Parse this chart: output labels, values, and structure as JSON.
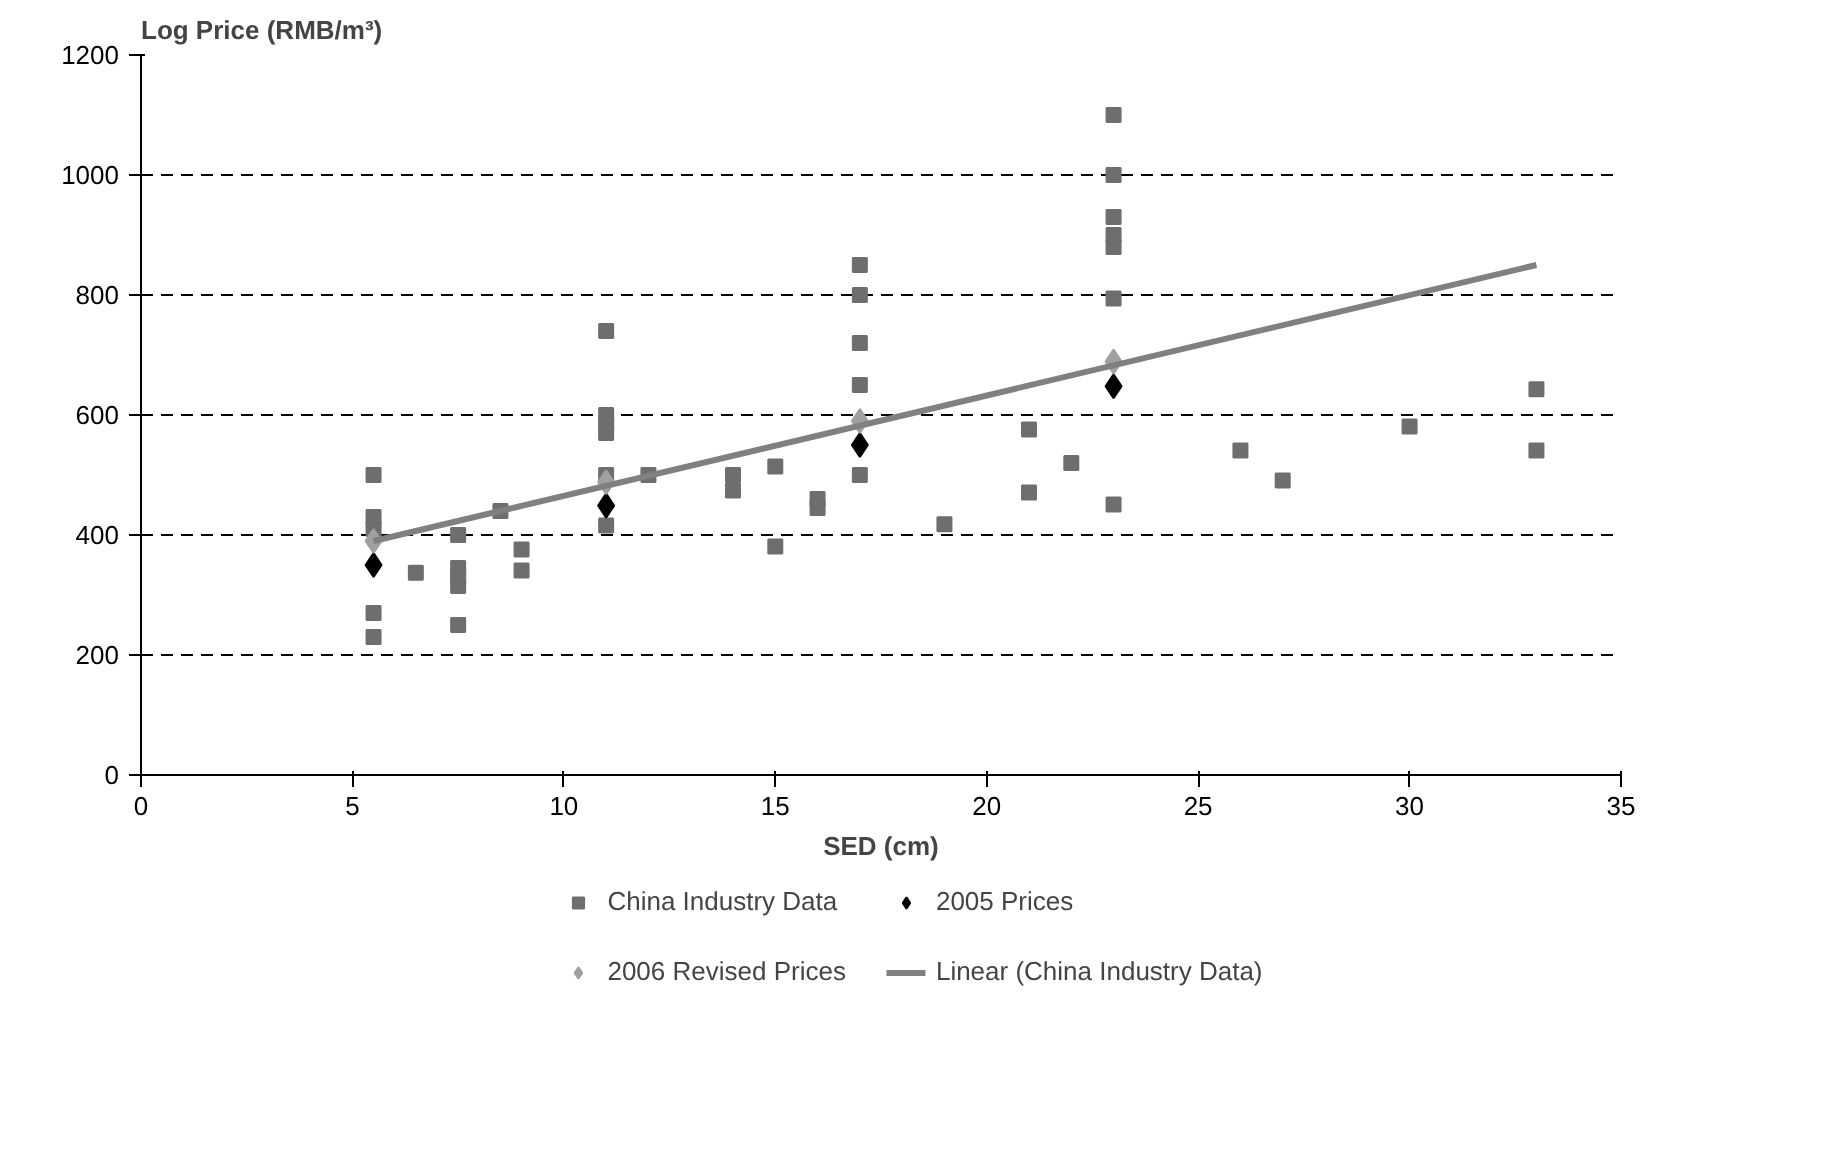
{
  "chart_data": {
    "type": "scatter",
    "xlabel": "SED (cm)",
    "ylabel": "Log Price (RMB/m³)",
    "xlim": [
      0,
      35
    ],
    "xticks": [
      0,
      5,
      10,
      15,
      20,
      25,
      30,
      35
    ],
    "ylim": [
      0,
      1200
    ],
    "yticks": [
      0,
      200,
      400,
      600,
      800,
      1000,
      1200
    ],
    "grid": "y",
    "legend": "bottom",
    "series": [
      {
        "name": "China Industry Data",
        "color": "#6e6e6e",
        "marker": "square",
        "x": [
          5.5,
          5.5,
          5.5,
          5.5,
          5.5,
          6.5,
          7.5,
          7.5,
          7.5,
          7.5,
          7.5,
          8.5,
          9,
          9,
          11,
          11,
          11,
          11,
          11,
          11,
          12,
          14,
          14,
          15,
          15,
          16,
          16,
          17,
          17,
          17,
          17,
          17,
          19,
          21,
          21,
          22,
          23,
          23,
          23,
          23,
          23,
          23,
          23,
          26,
          27,
          30,
          33,
          33
        ],
        "values": [
          500,
          430,
          410,
          270,
          230,
          337,
          400,
          345,
          330,
          315,
          250,
          440,
          376,
          341,
          740,
          600,
          585,
          570,
          500,
          416,
          500,
          500,
          474,
          514,
          381,
          460,
          445,
          850,
          800,
          720,
          650,
          500,
          418,
          576,
          471,
          520,
          1100,
          1000,
          930,
          900,
          880,
          794,
          451,
          541,
          491,
          581,
          643,
          541
        ]
      },
      {
        "name": "2005 Prices",
        "color": "#000000",
        "marker": "diamond",
        "x": [
          5.5,
          11,
          17,
          23
        ],
        "values": [
          350,
          449,
          550,
          648
        ]
      },
      {
        "name": "2006 Revised Prices",
        "color": "#a0a0a0",
        "marker": "diamond",
        "x": [
          5.5,
          11,
          17,
          23
        ],
        "values": [
          390,
          488,
          590,
          689
        ]
      },
      {
        "name": "Linear (China Industry Data)",
        "type": "line",
        "color": "#808080",
        "line_style": "solid",
        "x": [
          5.5,
          33
        ],
        "values": [
          390,
          850
        ]
      }
    ]
  }
}
